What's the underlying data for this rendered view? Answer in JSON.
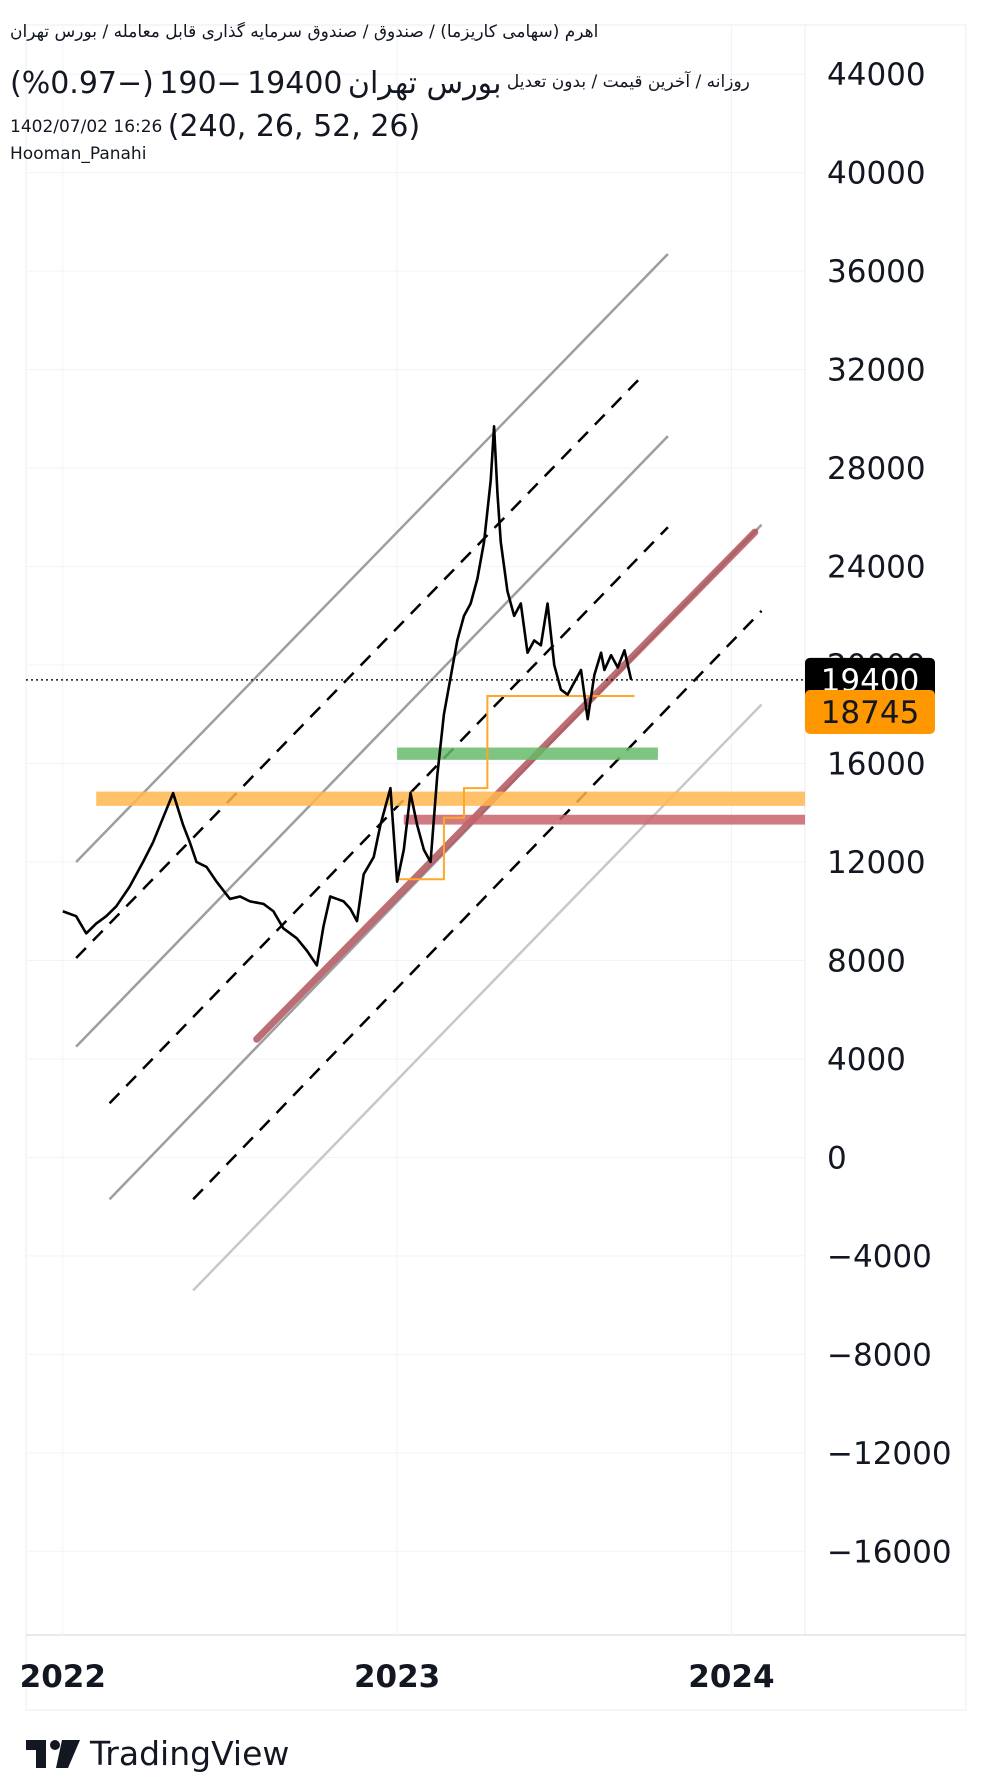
{
  "header": {
    "title": "اهرم (سهامی کاریزما) / صندوق / صندوق سرمایه گذاری قابل معامله / بورس تهران",
    "subtitle": "روزانه / آخرین قیمت / بدون تعدیل",
    "exchange": "بورس تهران",
    "last_price": "19400",
    "change": "−190",
    "change_pct": "(−0.97%)",
    "datetime": "1402/07/02 16:26",
    "ohlc_readout": "(240, 26, 52, 26)",
    "author": "Hooman_Panahi"
  },
  "branding": {
    "logo_text": "TradingView"
  },
  "chart_data": {
    "type": "line",
    "title": "اهرم",
    "timeframe": "روزانه",
    "y_ticks": [
      "44000",
      "40000",
      "36000",
      "32000",
      "28000",
      "24000",
      "20000",
      "16000",
      "12000",
      "8000",
      "4000",
      "0",
      "−4000",
      "−8000",
      "−12000",
      "−16000"
    ],
    "y_tick_values": [
      44000,
      40000,
      36000,
      32000,
      28000,
      24000,
      20000,
      16000,
      12000,
      8000,
      4000,
      0,
      -4000,
      -8000,
      -12000,
      -16000
    ],
    "ylim": [
      -19400,
      46000
    ],
    "x_ticks": [
      "2022",
      "2023",
      "2024"
    ],
    "xlim": [
      2021.89,
      2024.22
    ],
    "price_labels": [
      {
        "text": "19400",
        "value": 19400,
        "bg": "#000000",
        "fg": "#ffffff"
      },
      {
        "text": "18745",
        "value": 18745,
        "bg": "#ff9800",
        "fg": "#131722"
      }
    ],
    "current_price_line": 19400,
    "series": [
      {
        "color": "#000000",
        "x": [
          2022.0,
          2022.04,
          2022.07,
          2022.1,
          2022.13,
          2022.16,
          2022.2,
          2022.24,
          2022.27,
          2022.3,
          2022.33,
          2022.36,
          2022.38,
          2022.4,
          2022.43,
          2022.46,
          2022.5,
          2022.53,
          2022.56,
          2022.6,
          2022.63,
          2022.66,
          2022.7,
          2022.73,
          2022.76,
          2022.78,
          2022.8,
          2022.82,
          2022.84,
          2022.86,
          2022.88,
          2022.9,
          2022.93,
          2022.95,
          2022.97,
          2022.98,
          2023.0,
          2023.02,
          2023.04,
          2023.06,
          2023.08,
          2023.1,
          2023.12,
          2023.14,
          2023.16,
          2023.18,
          2023.2,
          2023.22,
          2023.24,
          2023.26,
          2023.28,
          2023.29,
          2023.3,
          2023.31,
          2023.32,
          2023.33,
          2023.35,
          2023.37,
          2023.39,
          2023.41,
          2023.43,
          2023.45,
          2023.47,
          2023.49,
          2023.51,
          2023.53,
          2023.55,
          2023.57,
          2023.59,
          2023.61,
          2023.62,
          2023.64,
          2023.66,
          2023.68,
          2023.7
        ],
        "y": [
          10000,
          9800,
          9100,
          9500,
          9800,
          10200,
          11000,
          12000,
          12800,
          13800,
          14800,
          13500,
          12800,
          12000,
          11800,
          11200,
          10500,
          10600,
          10400,
          10300,
          10000,
          9300,
          8900,
          8400,
          7800,
          9400,
          10600,
          10500,
          10400,
          10100,
          9600,
          11500,
          12200,
          13500,
          14500,
          15000,
          11200,
          12500,
          14800,
          13500,
          12500,
          12000,
          15500,
          18000,
          19500,
          21000,
          22000,
          22500,
          23500,
          25000,
          27500,
          29700,
          27000,
          25000,
          24000,
          23000,
          22000,
          22500,
          20500,
          21000,
          20800,
          22500,
          20000,
          19000,
          18800,
          19300,
          19800,
          17800,
          19600,
          20500,
          19800,
          20400,
          19900,
          20600,
          19400
        ]
      }
    ],
    "channel_lines": [
      {
        "style": "solid",
        "color": "#9e9e9e",
        "x": [
          2022.04,
          2023.81
        ],
        "y": [
          12000,
          36700
        ]
      },
      {
        "style": "dashed",
        "color": "#000000",
        "x": [
          2022.04,
          2023.73
        ],
        "y": [
          8100,
          31700
        ]
      },
      {
        "style": "solid",
        "color": "#9e9e9e",
        "x": [
          2022.04,
          2023.81
        ],
        "y": [
          4500,
          29300
        ]
      },
      {
        "style": "dashed",
        "color": "#000000",
        "x": [
          2022.14,
          2023.81
        ],
        "y": [
          2200,
          25600
        ]
      },
      {
        "style": "solid",
        "color": "#9e9e9e",
        "x": [
          2022.14,
          2024.09
        ],
        "y": [
          -1700,
          25700
        ]
      },
      {
        "style": "dashed",
        "color": "#000000",
        "x": [
          2022.39,
          2024.09
        ],
        "y": [
          -1700,
          22200
        ]
      },
      {
        "style": "solid",
        "color": "#c8c8c8",
        "x": [
          2022.39,
          2024.09
        ],
        "y": [
          -5400,
          18400
        ]
      }
    ],
    "trend_line": {
      "color": "#b0555c",
      "x": [
        2022.58,
        2024.07
      ],
      "y": [
        4800,
        25400
      ]
    },
    "zones": [
      {
        "color": "#ffb74d",
        "x": [
          2022.1,
          2024.22
        ],
        "y": [
          14280,
          14860
        ]
      },
      {
        "color": "#c8636b",
        "x": [
          2023.02,
          2024.22
        ],
        "y": [
          13520,
          13920
        ]
      },
      {
        "color": "#66bb6a",
        "x": [
          2023.0,
          2023.78
        ],
        "y": [
          16150,
          16650
        ]
      }
    ],
    "step_line": {
      "color": "#ffa726",
      "x": [
        2023.0,
        2023.14,
        2023.14,
        2023.2,
        2023.2,
        2023.27,
        2023.27,
        2023.71
      ],
      "y": [
        11300,
        11300,
        13800,
        13800,
        15000,
        15000,
        18745,
        18745
      ]
    }
  }
}
